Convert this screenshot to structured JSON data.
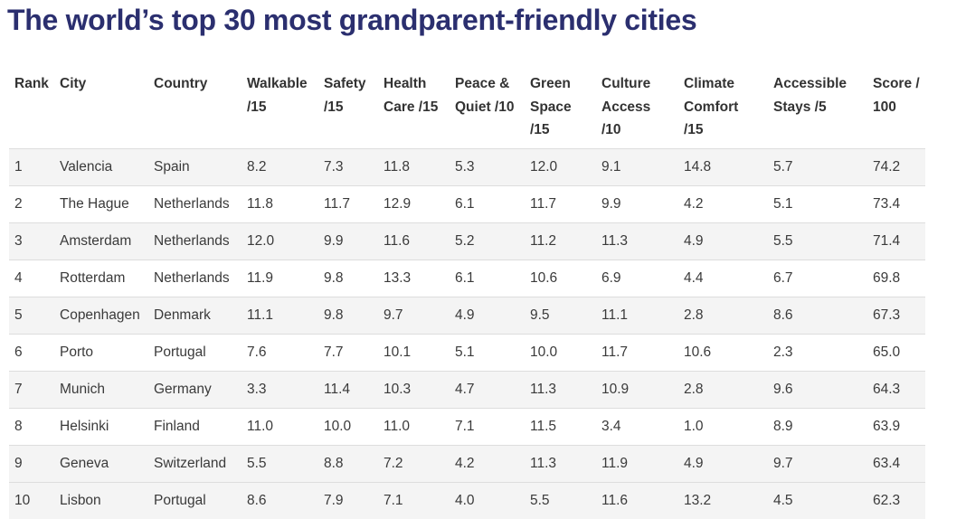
{
  "title": "The world’s top 30 most grandparent-friendly cities",
  "table": {
    "headers": {
      "rank": "Rank",
      "city": "City",
      "country": "Country",
      "walkable": [
        "Walkable",
        "/15"
      ],
      "safety": [
        "Safety",
        "/15"
      ],
      "health": [
        "Health",
        "Care /15"
      ],
      "peace": [
        "Peace &",
        "Quiet /10"
      ],
      "green": [
        "Green",
        "Space",
        "/15"
      ],
      "culture": [
        "Culture",
        "Access",
        "/10"
      ],
      "climate": [
        "Climate",
        "Comfort",
        "/15"
      ],
      "stays": [
        "Accessible",
        "Stays /5"
      ],
      "score": [
        "Score /",
        "100"
      ]
    },
    "rows": [
      [
        "1",
        "Valencia",
        "Spain",
        "8.2",
        "7.3",
        "11.8",
        "5.3",
        "12.0",
        "9.1",
        "14.8",
        "5.7",
        "74.2"
      ],
      [
        "2",
        "The Hague",
        "Netherlands",
        "11.8",
        "11.7",
        "12.9",
        "6.1",
        "11.7",
        "9.9",
        "4.2",
        "5.1",
        "73.4"
      ],
      [
        "3",
        "Amsterdam",
        "Netherlands",
        "12.0",
        "9.9",
        "11.6",
        "5.2",
        "11.2",
        "11.3",
        "4.9",
        "5.5",
        "71.4"
      ],
      [
        "4",
        "Rotterdam",
        "Netherlands",
        "11.9",
        "9.8",
        "13.3",
        "6.1",
        "10.6",
        "6.9",
        "4.4",
        "6.7",
        "69.8"
      ],
      [
        "5",
        "Copenhagen",
        "Denmark",
        "11.1",
        "9.8",
        "9.7",
        "4.9",
        "9.5",
        "11.1",
        "2.8",
        "8.6",
        "67.3"
      ],
      [
        "6",
        "Porto",
        "Portugal",
        "7.6",
        "7.7",
        "10.1",
        "5.1",
        "10.0",
        "11.7",
        "10.6",
        "2.3",
        "65.0"
      ],
      [
        "7",
        "Munich",
        "Germany",
        "3.3",
        "11.4",
        "10.3",
        "4.7",
        "11.3",
        "10.9",
        "2.8",
        "9.6",
        "64.3"
      ],
      [
        "8",
        "Helsinki",
        "Finland",
        "11.0",
        "10.0",
        "11.0",
        "7.1",
        "11.5",
        "3.4",
        "1.0",
        "8.9",
        "63.9"
      ],
      [
        "9",
        "Geneva",
        "Switzerland",
        "5.5",
        "8.8",
        "7.2",
        "4.2",
        "11.3",
        "11.9",
        "4.9",
        "9.7",
        "63.4"
      ],
      [
        "10",
        "Lisbon",
        "Portugal",
        "8.6",
        "7.9",
        "7.1",
        "4.0",
        "5.5",
        "11.6",
        "13.2",
        "4.5",
        "62.3"
      ]
    ]
  }
}
